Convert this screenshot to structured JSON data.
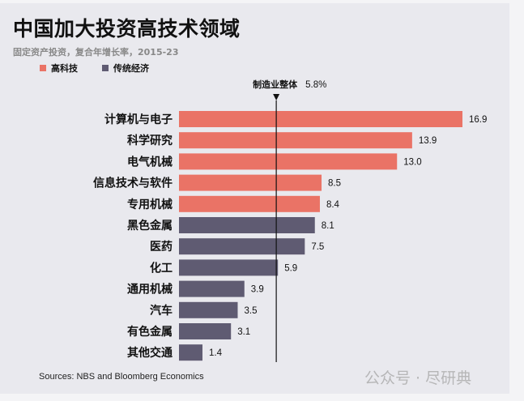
{
  "title": "中国加大投资高技术领域",
  "subtitle": "固定资产投资，复合年增长率，2015-23",
  "source": "Sources: NBS and Bloomberg Economics",
  "watermark": "公众号 · 尽研典",
  "colors": {
    "high_tech": "#ea7366",
    "traditional": "#5f5b72"
  },
  "chart_data": {
    "type": "bar",
    "orientation": "horizontal",
    "title": "中国加大投资高技术领域",
    "subtitle": "固定资产投资，复合年增长率，2015-23",
    "legend": [
      {
        "name": "高科技",
        "key": "high_tech"
      },
      {
        "name": "传统经济",
        "key": "traditional"
      }
    ],
    "legend_placement": "top-left",
    "categories": [
      "计算机与电子",
      "科学研究",
      "电气机械",
      "信息技术与软件",
      "专用机械",
      "黑色金属",
      "医药",
      "化工",
      "通用机械",
      "汽车",
      "有色金属",
      "其他交通"
    ],
    "values": [
      16.9,
      13.9,
      13.0,
      8.5,
      8.4,
      8.1,
      7.5,
      5.9,
      3.9,
      3.5,
      3.1,
      1.4
    ],
    "value_labels": [
      "16.9",
      "13.9",
      "13.0",
      "8.5",
      "8.4",
      "8.1",
      "7.5",
      "5.9",
      "3.9",
      "3.5",
      "3.1",
      "1.4"
    ],
    "groups": [
      "high_tech",
      "high_tech",
      "high_tech",
      "high_tech",
      "high_tech",
      "traditional",
      "traditional",
      "traditional",
      "traditional",
      "traditional",
      "traditional",
      "traditional"
    ],
    "reference_line": {
      "label": "制造业整体",
      "value": 5.8,
      "value_label": "5.8%"
    },
    "xlim": [
      0,
      17.5
    ],
    "grid": false
  }
}
